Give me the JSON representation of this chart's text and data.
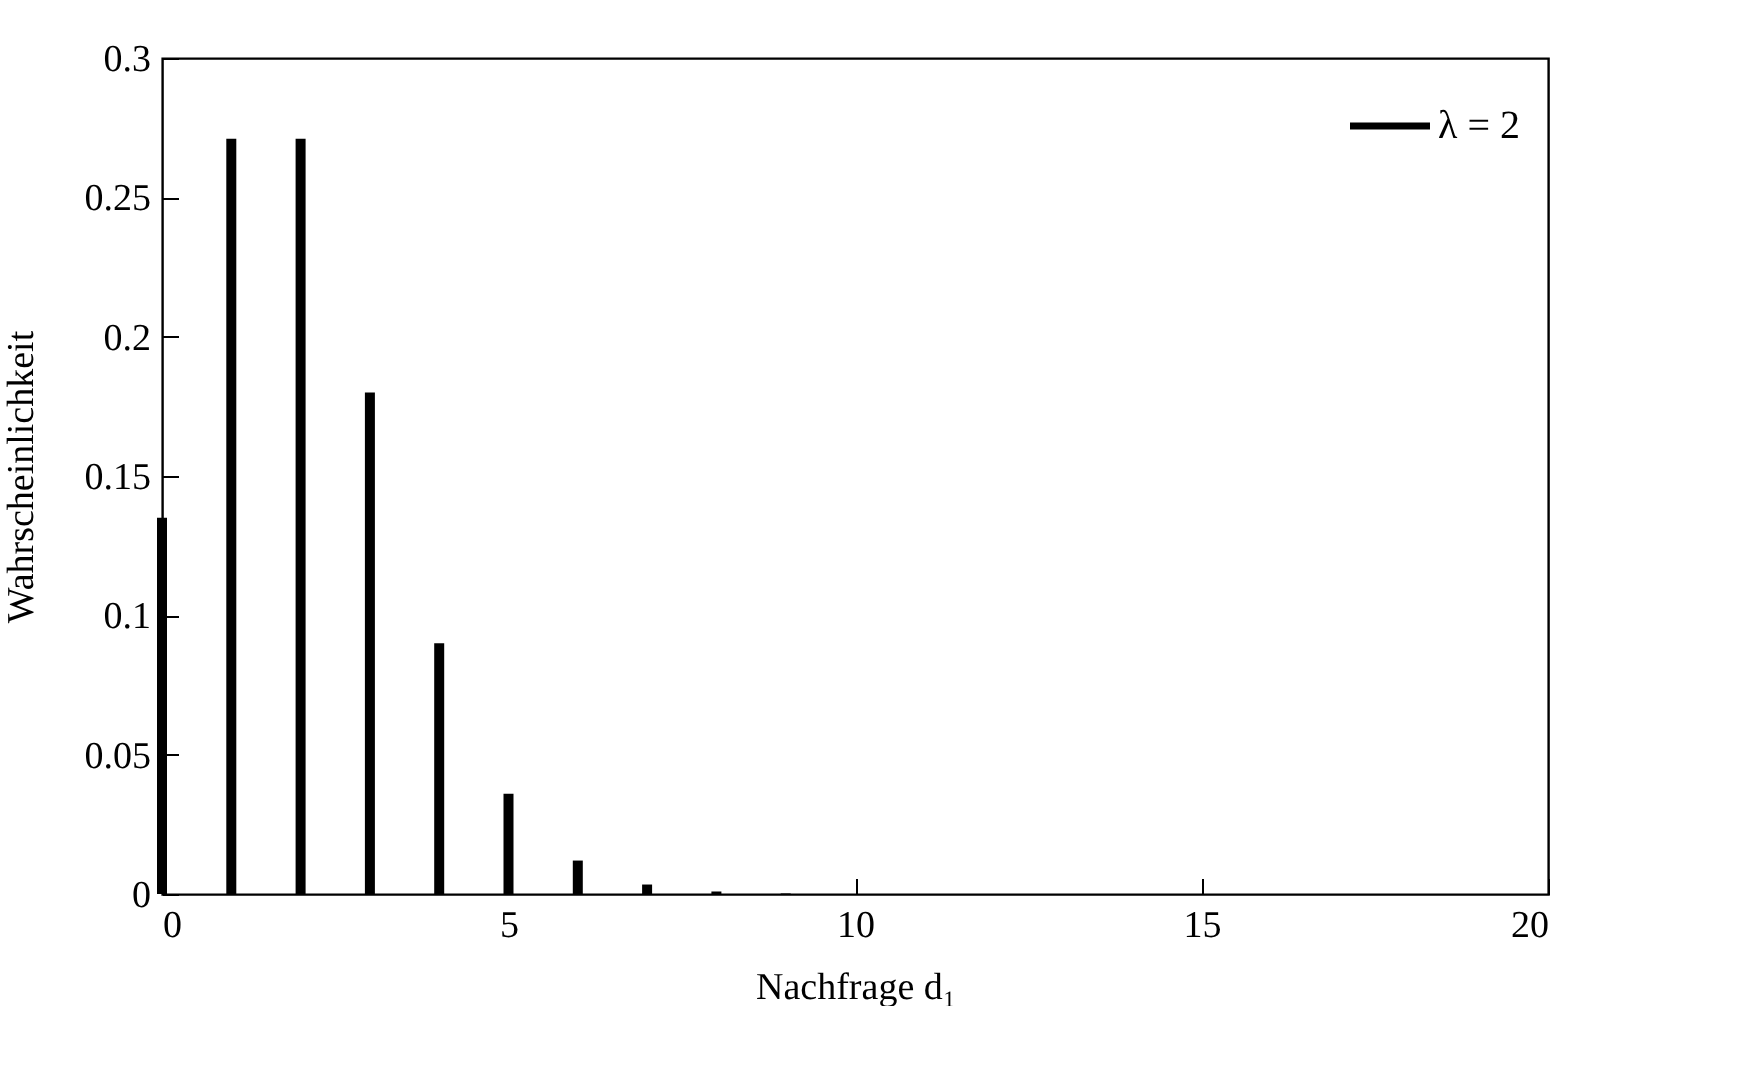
{
  "chart_data": {
    "type": "bar",
    "xlabel": "Nachfrage d₁",
    "ylabel": "Wahrscheinlichkeit",
    "x": [
      0,
      1,
      2,
      3,
      4,
      5,
      6,
      7,
      8,
      9
    ],
    "series": [
      {
        "name": "λ = 2",
        "color": "#000000",
        "values": [
          0.135,
          0.271,
          0.271,
          0.18,
          0.09,
          0.036,
          0.012,
          0.0034,
          0.0009,
          0.0002
        ]
      }
    ],
    "xlim": [
      0,
      20
    ],
    "xticks": [
      0,
      5,
      10,
      15,
      20
    ],
    "ylim": [
      0,
      0.3
    ],
    "yticks": [
      0,
      0.05,
      0.1,
      0.15,
      0.2,
      0.25,
      0.3
    ],
    "grid": false,
    "legend": "top right"
  }
}
